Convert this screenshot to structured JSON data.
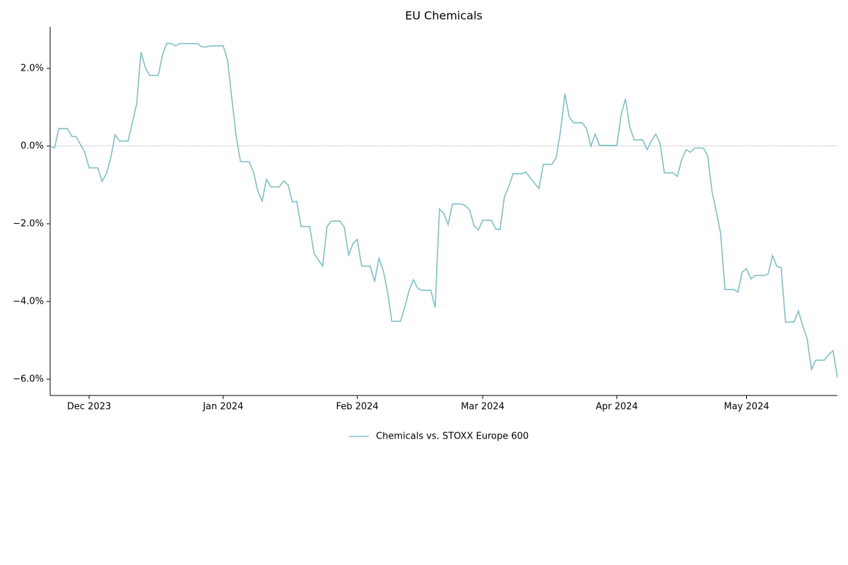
{
  "chart_data": {
    "type": "line",
    "title": "EU Chemicals",
    "categories": [
      null,
      null,
      null,
      null,
      null,
      null,
      null,
      null,
      null,
      "Dec 2023",
      null,
      null,
      null,
      null,
      null,
      null,
      null,
      null,
      null,
      null,
      null,
      null,
      null,
      null,
      null,
      null,
      null,
      null,
      null,
      null,
      null,
      null,
      null,
      null,
      null,
      null,
      null,
      null,
      null,
      null,
      "Jan 2024",
      null,
      null,
      null,
      null,
      null,
      null,
      null,
      null,
      null,
      null,
      null,
      null,
      null,
      null,
      null,
      null,
      null,
      null,
      null,
      null,
      null,
      null,
      null,
      null,
      null,
      null,
      null,
      null,
      null,
      null,
      "Feb 2024",
      null,
      null,
      null,
      null,
      null,
      null,
      null,
      null,
      null,
      null,
      null,
      null,
      null,
      null,
      null,
      null,
      null,
      null,
      null,
      null,
      null,
      null,
      null,
      null,
      null,
      null,
      null,
      null,
      "Mar 2024",
      null,
      null,
      null,
      null,
      null,
      null,
      null,
      null,
      null,
      null,
      null,
      null,
      null,
      null,
      null,
      null,
      null,
      null,
      null,
      null,
      null,
      null,
      null,
      null,
      null,
      null,
      null,
      null,
      null,
      null,
      "Apr 2024",
      null,
      null,
      null,
      null,
      null,
      null,
      null,
      null,
      null,
      null,
      null,
      null,
      null,
      null,
      null,
      null,
      null,
      null,
      null,
      null,
      null,
      null,
      null,
      null,
      null,
      null,
      null,
      null,
      null,
      "May 2024",
      null,
      null,
      null,
      null,
      null,
      null,
      null,
      null,
      null,
      null,
      null,
      null,
      null,
      null,
      null,
      null,
      null,
      null,
      null,
      null,
      null
    ],
    "series": [
      {
        "name": "Chemicals vs. STOXX Europe 600",
        "color": "#7fbfc4",
        "values": [
          0.0,
          -0.05,
          0.45,
          0.45,
          0.45,
          0.25,
          0.24,
          0.04,
          -0.16,
          -0.56,
          -0.56,
          -0.56,
          -0.91,
          -0.71,
          -0.31,
          0.29,
          0.13,
          0.13,
          0.13,
          0.6,
          1.09,
          2.42,
          2.02,
          1.82,
          1.82,
          1.82,
          2.36,
          2.65,
          2.64,
          2.58,
          2.64,
          2.64,
          2.64,
          2.64,
          2.64,
          2.56,
          2.55,
          2.58,
          2.58,
          2.58,
          2.58,
          2.22,
          1.22,
          0.25,
          -0.4,
          -0.4,
          -0.4,
          -0.67,
          -1.15,
          -1.42,
          -0.85,
          -1.05,
          -1.05,
          -1.05,
          -0.89,
          -1.0,
          -1.44,
          -1.42,
          -2.07,
          -2.07,
          -2.07,
          -2.76,
          -2.93,
          -3.09,
          -2.07,
          -1.93,
          -1.93,
          -1.93,
          -2.09,
          -2.8,
          -2.51,
          -2.4,
          -3.09,
          -3.09,
          -3.09,
          -3.49,
          -2.89,
          -3.2,
          -3.76,
          -4.51,
          -4.51,
          -4.51,
          -4.13,
          -3.71,
          -3.44,
          -3.67,
          -3.71,
          -3.71,
          -3.71,
          -4.16,
          -1.62,
          -1.73,
          -2.02,
          -1.49,
          -1.49,
          -1.49,
          -1.53,
          -1.65,
          -2.05,
          -2.16,
          -1.91,
          -1.91,
          -1.91,
          -2.13,
          -2.15,
          -1.31,
          -1.05,
          -0.71,
          -0.71,
          -0.71,
          -0.67,
          -0.82,
          -0.96,
          -1.09,
          -0.47,
          -0.47,
          -0.47,
          -0.29,
          0.4,
          1.35,
          0.75,
          0.6,
          0.6,
          0.6,
          0.45,
          0.0,
          0.31,
          0.02,
          0.02,
          0.02,
          0.02,
          0.02,
          0.8,
          1.22,
          0.49,
          0.16,
          0.16,
          0.16,
          -0.09,
          0.13,
          0.31,
          0.07,
          -0.69,
          -0.69,
          -0.69,
          -0.78,
          -0.35,
          -0.09,
          -0.16,
          -0.05,
          -0.05,
          -0.05,
          -0.24,
          -1.16,
          -1.69,
          -2.24,
          -3.69,
          -3.69,
          -3.69,
          -3.76,
          -3.24,
          -3.16,
          -3.42,
          -3.33,
          -3.33,
          -3.33,
          -3.29,
          -2.82,
          -3.09,
          -3.13,
          -4.53,
          -4.53,
          -4.53,
          -4.24,
          -4.64,
          -4.95,
          -5.75,
          -5.51,
          -5.51,
          -5.51,
          -5.36,
          -5.27,
          -5.96
        ]
      }
    ],
    "ylim": [
      -6.42,
      3.07
    ],
    "yticks": [
      {
        "value": -6,
        "label": "−6.0%"
      },
      {
        "value": -4,
        "label": "−4.0%"
      },
      {
        "value": -2,
        "label": "−2.0%"
      },
      {
        "value": 0,
        "label": "0.0%"
      },
      {
        "value": 2,
        "label": "2.0%"
      }
    ],
    "hline": 0,
    "legend": "bottom"
  }
}
